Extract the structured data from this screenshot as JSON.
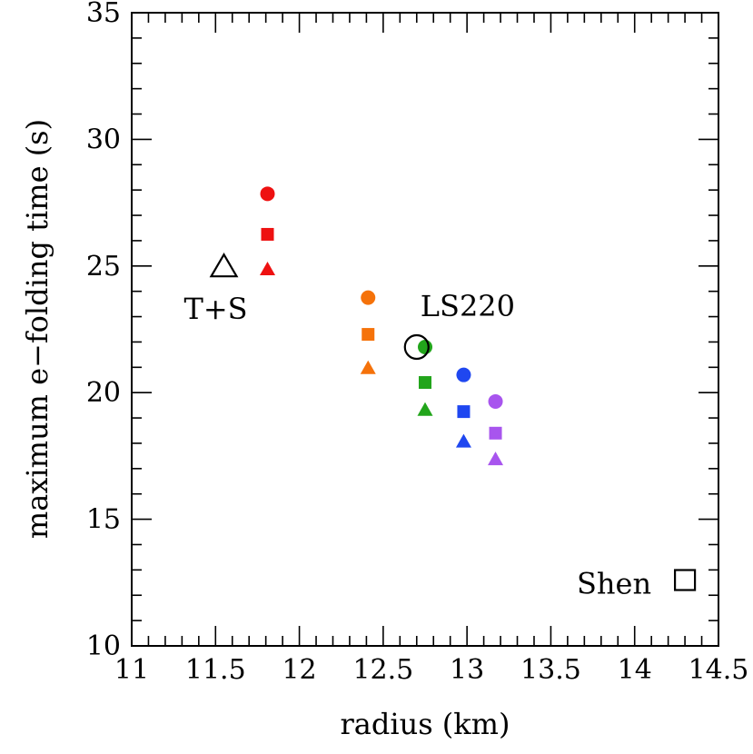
{
  "chart_data": {
    "type": "scatter",
    "title": "",
    "xlabel": "radius (km)",
    "ylabel": "maximum e−folding time (s)",
    "xlim": [
      11,
      14.5
    ],
    "ylim": [
      10,
      35
    ],
    "x_ticks": [
      11,
      11.5,
      12,
      12.5,
      13,
      13.5,
      14,
      14.5
    ],
    "x_tick_labels": [
      "11",
      "11.5",
      "12",
      "12.5",
      "13",
      "13.5",
      "14",
      "14.5"
    ],
    "y_ticks": [
      10,
      15,
      20,
      25,
      30,
      35
    ],
    "y_tick_labels": [
      "10",
      "15",
      "20",
      "25",
      "30",
      "35"
    ],
    "series": [
      {
        "name": "red",
        "color": "#ee1111",
        "points": [
          {
            "x": 11.81,
            "y": 27.85,
            "marker": "circle"
          },
          {
            "x": 11.81,
            "y": 26.25,
            "marker": "square"
          },
          {
            "x": 11.81,
            "y": 24.85,
            "marker": "triangle"
          }
        ]
      },
      {
        "name": "orange",
        "color": "#f5720a",
        "points": [
          {
            "x": 12.41,
            "y": 23.75,
            "marker": "circle"
          },
          {
            "x": 12.41,
            "y": 22.3,
            "marker": "square"
          },
          {
            "x": 12.41,
            "y": 20.95,
            "marker": "triangle"
          }
        ]
      },
      {
        "name": "green",
        "color": "#22a51b",
        "points": [
          {
            "x": 12.75,
            "y": 21.8,
            "marker": "circle"
          },
          {
            "x": 12.75,
            "y": 20.4,
            "marker": "square"
          },
          {
            "x": 12.75,
            "y": 19.3,
            "marker": "triangle"
          }
        ]
      },
      {
        "name": "blue",
        "color": "#1f47f0",
        "points": [
          {
            "x": 12.98,
            "y": 20.7,
            "marker": "circle"
          },
          {
            "x": 12.98,
            "y": 19.25,
            "marker": "square"
          },
          {
            "x": 12.98,
            "y": 18.05,
            "marker": "triangle"
          }
        ]
      },
      {
        "name": "purple",
        "color": "#a855ee",
        "points": [
          {
            "x": 13.17,
            "y": 19.65,
            "marker": "circle"
          },
          {
            "x": 13.17,
            "y": 18.4,
            "marker": "square"
          },
          {
            "x": 13.17,
            "y": 17.35,
            "marker": "triangle"
          }
        ]
      }
    ],
    "reference_points": [
      {
        "label": "T+S",
        "x": 11.55,
        "y": 24.95,
        "marker": "open-triangle",
        "label_anchor": "below-left"
      },
      {
        "label": "LS220",
        "x": 12.7,
        "y": 21.8,
        "marker": "open-circle",
        "label_anchor": "above-right"
      },
      {
        "label": "Shen",
        "x": 14.3,
        "y": 12.6,
        "marker": "open-square",
        "label_anchor": "left"
      }
    ]
  }
}
